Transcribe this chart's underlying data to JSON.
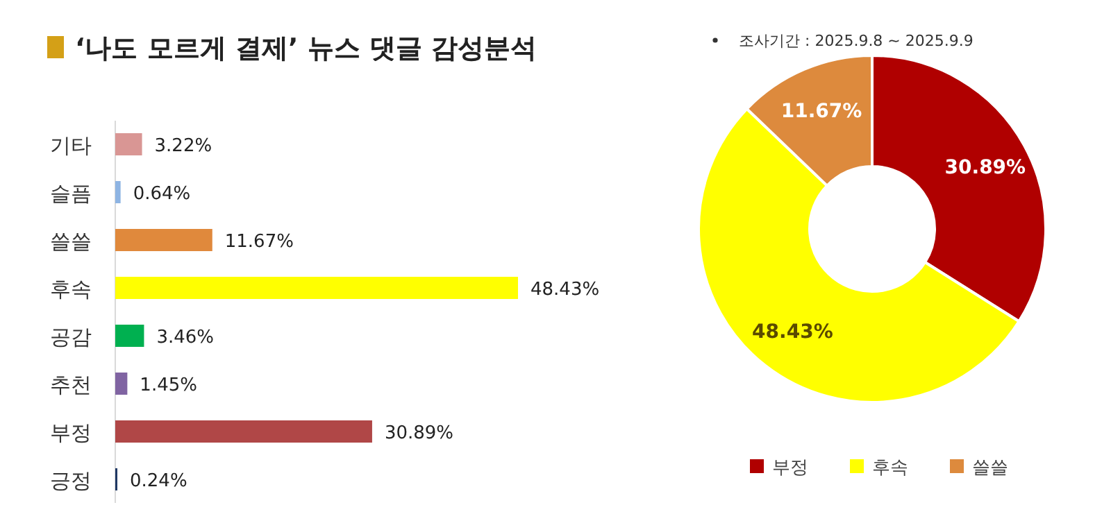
{
  "chart_data": [
    {
      "type": "bar",
      "orientation": "horizontal",
      "title": "‘나도 모르게 결제’ 뉴스 댓글 감성분석",
      "categories": [
        "기타",
        "슬픔",
        "쓸쓸",
        "후속",
        "공감",
        "추천",
        "부정",
        "긍정"
      ],
      "values": [
        3.22,
        0.64,
        11.67,
        48.43,
        3.46,
        1.45,
        30.89,
        0.24
      ],
      "colors": [
        "#d99694",
        "#8eb4e3",
        "#e0893c",
        "#ffff00",
        "#00b050",
        "#8064a2",
        "#b04747",
        "#1f3864"
      ],
      "value_labels": [
        "3.22%",
        "0.64%",
        "11.67%",
        "48.43%",
        "3.46%",
        "1.45%",
        "30.89%",
        "0.24%"
      ]
    },
    {
      "type": "donut",
      "categories": [
        "부정",
        "후속",
        "쓸쓸"
      ],
      "values": [
        30.89,
        48.43,
        11.67
      ],
      "colors": [
        "#b00000",
        "#ffff00",
        "#dd8a3d"
      ],
      "value_labels": [
        "30.89%",
        "48.43%",
        "11.67%"
      ],
      "legend": "bottom",
      "annotations": [
        "조사기간 : 2025.9.8 ~ 2025.9.9"
      ]
    }
  ]
}
